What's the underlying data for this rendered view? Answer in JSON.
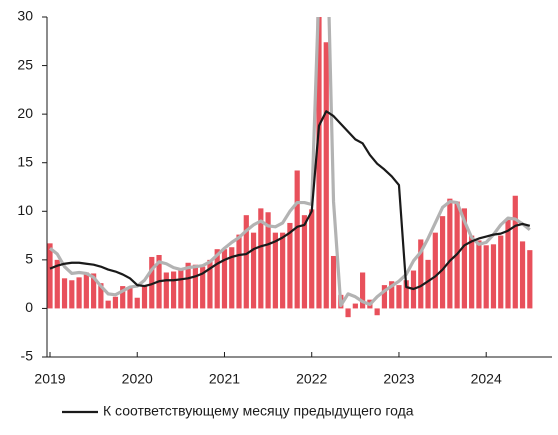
{
  "chart_data": {
    "type": "bar",
    "categories": [
      "2019",
      null,
      null,
      null,
      null,
      null,
      null,
      null,
      null,
      null,
      null,
      null,
      "2020",
      null,
      null,
      null,
      null,
      null,
      null,
      null,
      null,
      null,
      null,
      null,
      "2021",
      null,
      null,
      null,
      null,
      null,
      null,
      null,
      null,
      null,
      null,
      null,
      "2022",
      null,
      null,
      null,
      null,
      null,
      null,
      null,
      null,
      null,
      null,
      null,
      "2023",
      null,
      null,
      null,
      null,
      null,
      null,
      null,
      null,
      null,
      null,
      null,
      "2024",
      null,
      null,
      null,
      null,
      null,
      null
    ],
    "series": [
      {
        "type": "bar",
        "color": "#e8505b",
        "values": [
          6.7,
          5.0,
          3.1,
          2.9,
          3.2,
          3.7,
          3.6,
          2.6,
          0.8,
          1.2,
          2.3,
          2.2,
          1.1,
          2.3,
          5.3,
          5.5,
          3.7,
          3.8,
          4.1,
          4.7,
          4.5,
          4.3,
          5.0,
          6.1,
          6.1,
          6.3,
          7.6,
          9.6,
          7.8,
          10.3,
          9.9,
          7.8,
          7.8,
          8.8,
          14.2,
          9.6,
          10.2,
          32,
          27.4,
          5.4,
          1.4,
          -0.9,
          0.5,
          3.7,
          0.9,
          -0.7,
          2.4,
          2.8,
          2.4,
          2.9,
          3.9,
          7.1,
          5.0,
          7.8,
          9.5,
          11.3,
          11.0,
          10.3,
          7.5,
          7.0,
          6.5,
          6.6,
          7.5,
          9.1,
          11.6,
          6.9,
          6.0
        ]
      },
      {
        "type": "line",
        "color": "#b3b3b3",
        "values": [
          6.2,
          5.6,
          4.3,
          3.6,
          3.7,
          3.6,
          3.2,
          2.3,
          1.5,
          1.4,
          1.8,
          2.2,
          2.3,
          2.9,
          4.0,
          4.8,
          4.6,
          4.2,
          4.0,
          4.2,
          4.3,
          4.4,
          4.8,
          5.5,
          6.2,
          6.8,
          7.3,
          8.0,
          8.6,
          9.0,
          8.5,
          8.4,
          8.8,
          10.0,
          10.9,
          10.9,
          10.7,
          33,
          42,
          11,
          0.3,
          1.5,
          1.2,
          0.7,
          0.4,
          1.2,
          1.8,
          2.3,
          2.8,
          3.5,
          4.9,
          5.8,
          7.2,
          8.8,
          10.4,
          11.0,
          10.9,
          9.0,
          7.3,
          6.6,
          6.8,
          7.6,
          8.6,
          9.3,
          9.2,
          8.7,
          8.1
        ]
      },
      {
        "type": "line",
        "color": "#1a1a1a",
        "name": "К соответствующему месяцу предыдущего года",
        "values": [
          4.1,
          4.4,
          4.6,
          4.7,
          4.7,
          4.6,
          4.5,
          4.3,
          4.0,
          3.8,
          3.5,
          3.1,
          2.4,
          2.3,
          2.5,
          2.8,
          2.9,
          2.9,
          3.0,
          3.1,
          3.3,
          3.6,
          4.1,
          4.6,
          5.0,
          5.3,
          5.5,
          5.6,
          6.1,
          6.4,
          6.6,
          6.9,
          7.3,
          7.8,
          8.4,
          8.6,
          10.0,
          18.8,
          20.3,
          19.8,
          19.0,
          18.2,
          17.4,
          17.0,
          15.8,
          14.9,
          14.3,
          13.6,
          12.7,
          2.2,
          2.0,
          2.3,
          2.8,
          3.3,
          4.0,
          4.9,
          5.6,
          6.5,
          6.9,
          7.2,
          7.4,
          7.6,
          7.7,
          8.0,
          8.5,
          8.7,
          8.5
        ]
      }
    ],
    "ylim": [
      -5,
      30
    ],
    "yticks": [
      -5,
      0,
      5,
      10,
      15,
      20,
      25,
      30
    ]
  }
}
